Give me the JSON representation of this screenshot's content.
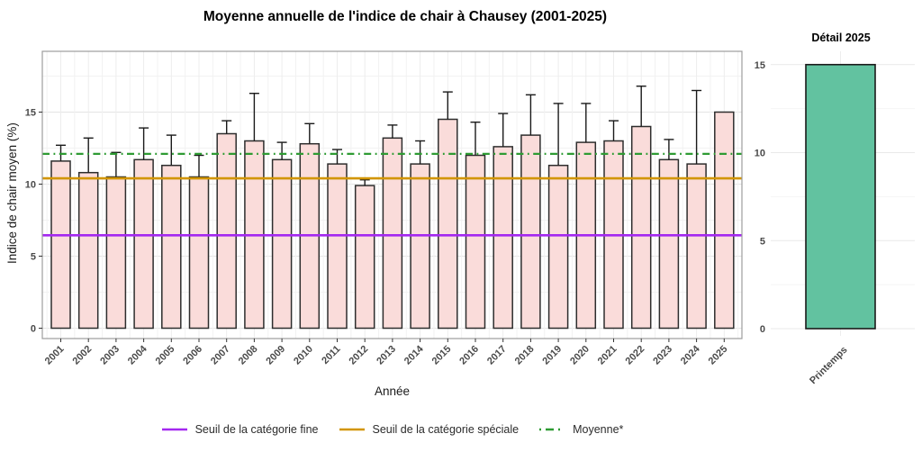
{
  "figure": {
    "background": "#ffffff"
  },
  "chart_data": [
    {
      "type": "bar",
      "title": "Moyenne annuelle de l'indice de chair à Chausey (2001-2025)",
      "xlabel": "Année",
      "ylabel": "Indice de chair moyen (%)",
      "categories": [
        "2001",
        "2002",
        "2003",
        "2004",
        "2005",
        "2006",
        "2007",
        "2008",
        "2009",
        "2010",
        "2011",
        "2012",
        "2013",
        "2014",
        "2015",
        "2016",
        "2017",
        "2018",
        "2019",
        "2020",
        "2021",
        "2022",
        "2023",
        "2024",
        "2025"
      ],
      "values": [
        11.6,
        10.8,
        10.5,
        11.7,
        11.3,
        10.5,
        13.5,
        13.0,
        11.7,
        12.8,
        11.4,
        9.9,
        13.2,
        11.4,
        14.5,
        12.0,
        12.6,
        13.4,
        11.3,
        12.9,
        13.0,
        14.0,
        11.7,
        11.4,
        15.0
      ],
      "error_upper": [
        12.7,
        13.2,
        12.2,
        13.9,
        13.4,
        12.0,
        14.4,
        16.3,
        12.9,
        14.2,
        12.4,
        10.3,
        14.1,
        13.0,
        16.4,
        14.3,
        14.9,
        16.2,
        15.6,
        15.6,
        14.4,
        16.8,
        13.1,
        16.5,
        null
      ],
      "ylim": [
        0,
        19.3
      ],
      "yticks": [
        0,
        5,
        10,
        15
      ],
      "grid": true,
      "legend_position": "bottom",
      "bar_fill": "#FADCDA",
      "bar_stroke": "#2D2D2D",
      "error_color": "#1A1A1A",
      "reference_lines": [
        {
          "label": "Seuil de la catégorie fine",
          "value": 6.45,
          "color": "#A428F0",
          "style": "solid"
        },
        {
          "label": "Seuil de la catégorie spéciale",
          "value": 10.4,
          "color": "#D29500",
          "style": "solid"
        },
        {
          "label": "Moyenne*",
          "value": 12.1,
          "color": "#2E9B33",
          "style": "dashdot"
        }
      ]
    },
    {
      "type": "bar",
      "title": "Détail 2025",
      "xlabel": "",
      "ylabel": "",
      "categories": [
        "Printemps"
      ],
      "values": [
        15.0
      ],
      "ylim": [
        0,
        15.5
      ],
      "yticks": [
        0,
        5,
        10,
        15
      ],
      "grid": true,
      "bar_fill": "#62C2A0",
      "bar_stroke": "#1A1A1A"
    }
  ]
}
